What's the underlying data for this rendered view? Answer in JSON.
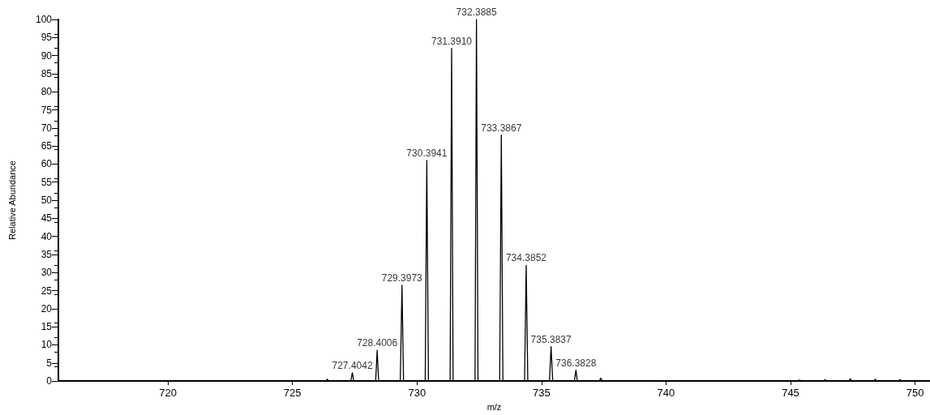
{
  "chart_data": {
    "type": "line",
    "xlabel": "m/z",
    "ylabel": "Relative Abundance",
    "xlim": [
      715.6,
      750.6
    ],
    "xticks": [
      720,
      725,
      730,
      735,
      740,
      745,
      750
    ],
    "ylim": [
      0,
      100
    ],
    "yticks": [
      0,
      5,
      10,
      15,
      20,
      25,
      30,
      35,
      40,
      45,
      50,
      55,
      60,
      65,
      70,
      75,
      80,
      85,
      90,
      95,
      100
    ],
    "grid": false,
    "marker": "none",
    "line_style": "solid",
    "series": [
      {
        "color": "#000000",
        "x": [
          715.6,
          726.34,
          726.4,
          726.46,
          727.34,
          727.4042,
          727.46,
          728.34,
          728.4006,
          728.46,
          729.33,
          729.3973,
          729.46,
          730.33,
          730.3941,
          730.46,
          731.33,
          731.391,
          731.45,
          732.33,
          732.3885,
          732.45,
          733.32,
          733.3867,
          733.45,
          734.32,
          734.3852,
          734.45,
          735.32,
          735.3837,
          735.45,
          736.32,
          736.3828,
          736.44,
          737.32,
          737.38,
          737.44,
          745.3,
          745.36,
          745.42,
          746.32,
          746.38,
          746.44,
          747.34,
          747.4,
          747.46,
          748.34,
          748.4,
          748.46,
          749.34,
          749.4,
          749.46,
          750.6
        ],
        "values": [
          0,
          0,
          0.5,
          0,
          0,
          2.3,
          0,
          0,
          8.5,
          0,
          0,
          26.5,
          0,
          0,
          61,
          0,
          0,
          92,
          0,
          0,
          100,
          0,
          0,
          68,
          0,
          0,
          32,
          0,
          0,
          9.5,
          0,
          0,
          3,
          0,
          0,
          0.8,
          0,
          0,
          0.3,
          0,
          0,
          0.4,
          0,
          0,
          0.6,
          0,
          0,
          0.5,
          0,
          0,
          0.4,
          0,
          0
        ]
      }
    ],
    "annotations": [
      {
        "text": "727.4042",
        "x": 727.4042,
        "y": 2.3
      },
      {
        "text": "728.4006",
        "x": 728.4006,
        "y": 8.5
      },
      {
        "text": "729.3973",
        "x": 729.3973,
        "y": 26.5
      },
      {
        "text": "730.3941",
        "x": 730.3941,
        "y": 61
      },
      {
        "text": "731.3910",
        "x": 731.391,
        "y": 92
      },
      {
        "text": "732.3885",
        "x": 732.3885,
        "y": 100
      },
      {
        "text": "733.3867",
        "x": 733.3867,
        "y": 68
      },
      {
        "text": "734.3852",
        "x": 734.3852,
        "y": 32
      },
      {
        "text": "735.3837",
        "x": 735.3837,
        "y": 9.5
      },
      {
        "text": "736.3828",
        "x": 736.3828,
        "y": 3
      }
    ]
  }
}
